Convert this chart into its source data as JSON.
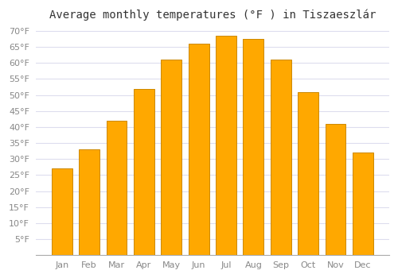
{
  "title": "Average monthly temperatures (°F ) in Tiszaeszlár",
  "months": [
    "Jan",
    "Feb",
    "Mar",
    "Apr",
    "May",
    "Jun",
    "Jul",
    "Aug",
    "Sep",
    "Oct",
    "Nov",
    "Dec"
  ],
  "values": [
    27,
    33,
    42,
    52,
    61,
    66,
    68.5,
    67.5,
    61,
    51,
    41,
    32
  ],
  "bar_color": "#FFA800",
  "bar_edge_color": "#CC8800",
  "background_color": "#FFFFFF",
  "plot_bg_color": "#FFFFFF",
  "grid_color": "#DDDDEE",
  "ylim": [
    0,
    72
  ],
  "yticks": [
    5,
    10,
    15,
    20,
    25,
    30,
    35,
    40,
    45,
    50,
    55,
    60,
    65,
    70
  ],
  "title_fontsize": 10,
  "tick_fontsize": 8,
  "title_color": "#333333",
  "tick_color": "#888888"
}
